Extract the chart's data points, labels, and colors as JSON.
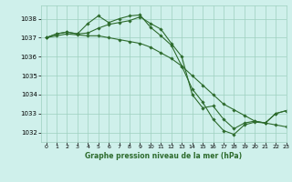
{
  "bg_color": "#cff0eb",
  "grid_color": "#9ecfbf",
  "line_color": "#2d6b2d",
  "title": "Graphe pression niveau de la mer (hPa)",
  "xlim": [
    -0.5,
    23
  ],
  "ylim": [
    1031.5,
    1038.7
  ],
  "yticks": [
    1032,
    1033,
    1034,
    1035,
    1036,
    1037,
    1038
  ],
  "xticks": [
    0,
    1,
    2,
    3,
    4,
    5,
    6,
    7,
    8,
    9,
    10,
    11,
    12,
    13,
    14,
    15,
    16,
    17,
    18,
    19,
    20,
    21,
    22,
    23
  ],
  "series": [
    {
      "x": [
        0,
        1,
        2,
        3,
        4,
        5,
        6,
        7,
        8,
        9,
        10,
        11,
        12,
        13,
        14,
        15,
        16,
        17,
        18,
        19,
        20,
        21,
        22,
        23
      ],
      "y": [
        1037.0,
        1037.2,
        1037.3,
        1037.2,
        1037.75,
        1038.15,
        1037.8,
        1038.0,
        1038.15,
        1038.2,
        1037.55,
        1037.1,
        1036.6,
        1035.5,
        1034.3,
        1033.6,
        1032.7,
        1032.1,
        1031.9,
        1032.4,
        1032.55,
        1032.5,
        1033.0,
        1033.15
      ]
    },
    {
      "x": [
        0,
        1,
        2,
        3,
        4,
        5,
        6,
        7,
        8,
        9,
        10,
        11,
        12,
        13,
        14,
        15,
        16,
        17,
        18,
        19,
        20,
        21,
        22,
        23
      ],
      "y": [
        1037.0,
        1037.2,
        1037.3,
        1037.2,
        1037.25,
        1037.5,
        1037.7,
        1037.8,
        1037.9,
        1038.1,
        1037.75,
        1037.45,
        1036.7,
        1036.0,
        1034.0,
        1033.3,
        1033.4,
        1032.7,
        1032.2,
        1032.5,
        1032.6,
        1032.5,
        1033.0,
        1033.15
      ]
    },
    {
      "x": [
        0,
        1,
        2,
        3,
        4,
        5,
        6,
        7,
        8,
        9,
        10,
        11,
        12,
        13,
        14,
        15,
        16,
        17,
        18,
        19,
        20,
        21,
        22,
        23
      ],
      "y": [
        1037.0,
        1037.1,
        1037.2,
        1037.15,
        1037.1,
        1037.1,
        1037.0,
        1036.9,
        1036.8,
        1036.7,
        1036.5,
        1036.2,
        1035.9,
        1035.5,
        1035.0,
        1034.5,
        1034.0,
        1033.5,
        1033.2,
        1032.9,
        1032.6,
        1032.5,
        1032.4,
        1032.3
      ]
    }
  ]
}
